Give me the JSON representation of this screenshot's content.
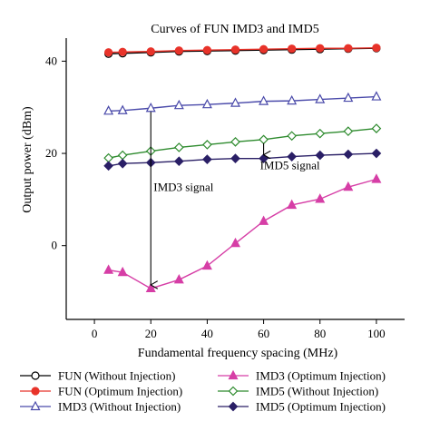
{
  "chart_data": {
    "type": "line",
    "title": "Curves of FUN IMD3 and IMD5",
    "xlabel": "Fundamental frequency spacing (MHz)",
    "ylabel": "Output power (dBm)",
    "xlim": [
      -10,
      110
    ],
    "ylim": [
      -16,
      45
    ],
    "xticks": [
      0,
      20,
      40,
      60,
      80,
      100
    ],
    "yticks": [
      0,
      20,
      40
    ],
    "grid": false,
    "legend_position": "bottom",
    "x": [
      5,
      10,
      20,
      30,
      40,
      50,
      60,
      70,
      80,
      90,
      100
    ],
    "series": [
      {
        "name": "FUN (Without Injection)",
        "marker": "circle-open",
        "color": "#000000",
        "values": [
          41.6,
          41.7,
          41.9,
          42.1,
          42.2,
          42.3,
          42.4,
          42.5,
          42.6,
          42.7,
          42.8
        ]
      },
      {
        "name": "FUN (Optimum Injection)",
        "marker": "circle-filled",
        "color": "#e8332a",
        "values": [
          41.9,
          42.0,
          42.1,
          42.3,
          42.4,
          42.5,
          42.6,
          42.7,
          42.8,
          42.8,
          42.9
        ]
      },
      {
        "name": "IMD3 (Without Injection)",
        "marker": "triangle-open",
        "color": "#4a4aaa",
        "values": [
          29.2,
          29.3,
          29.8,
          30.4,
          30.6,
          30.9,
          31.3,
          31.4,
          31.7,
          32.0,
          32.3
        ]
      },
      {
        "name": "IMD3 (Optimum Injection)",
        "marker": "triangle-filled",
        "color": "#d63ea6",
        "values": [
          -5.3,
          -5.8,
          -9.3,
          -7.4,
          -4.4,
          0.5,
          5.3,
          8.8,
          10.1,
          12.7,
          14.4
        ]
      },
      {
        "name": "IMD5 (Without Injection)",
        "marker": "diamond-open",
        "color": "#2e8b2e",
        "values": [
          19.0,
          19.6,
          20.5,
          21.3,
          21.9,
          22.5,
          23.0,
          23.8,
          24.3,
          24.8,
          25.4
        ]
      },
      {
        "name": "IMD5 (Optimum Injection)",
        "marker": "diamond-filled",
        "color": "#2a1f66",
        "values": [
          17.3,
          17.8,
          18.0,
          18.3,
          18.7,
          18.9,
          18.9,
          19.3,
          19.6,
          19.8,
          20.0
        ]
      }
    ],
    "annotations": [
      {
        "text": "IMD3 signal",
        "x": 20,
        "from_y": 29.8,
        "to_y": -9.3
      },
      {
        "text": "IMD5 signal",
        "x": 60,
        "from_y": 23.0,
        "to_y": 18.9
      }
    ]
  }
}
